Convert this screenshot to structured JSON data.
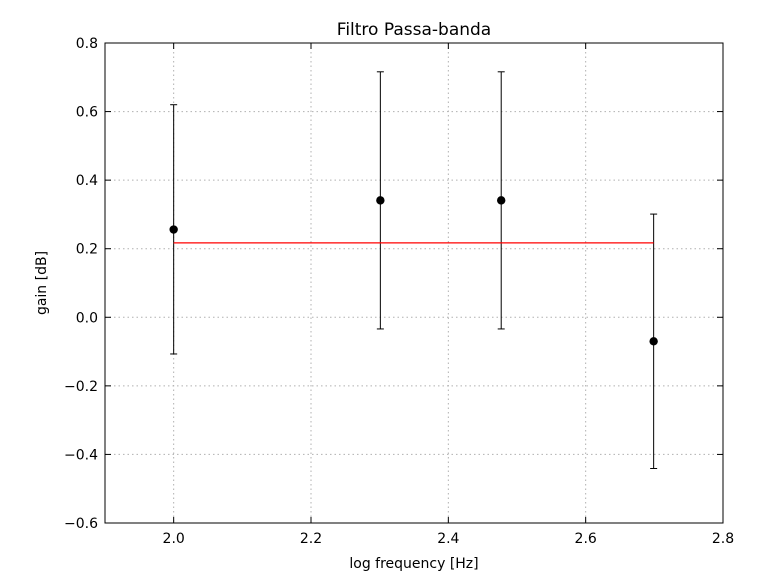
{
  "chart_data": {
    "type": "scatter",
    "title": "Filtro Passa-banda",
    "xlabel": "log frequency [Hz]",
    "ylabel": "gain [dB]",
    "xlim": [
      1.9,
      2.8
    ],
    "ylim": [
      -0.6,
      0.8
    ],
    "x_ticks": [
      2.0,
      2.2,
      2.4,
      2.6,
      2.8
    ],
    "x_tick_labels": [
      "2.0",
      "2.2",
      "2.4",
      "2.6",
      "2.8"
    ],
    "y_ticks": [
      -0.6,
      -0.4,
      -0.2,
      0.0,
      0.2,
      0.4,
      0.6,
      0.8
    ],
    "y_tick_labels": [
      "−0.6",
      "−0.4",
      "−0.2",
      "0.0",
      "0.2",
      "0.4",
      "0.6",
      "0.8"
    ],
    "grid": true,
    "series": [
      {
        "kind": "errorbar",
        "color": "#000000",
        "x": [
          2.0,
          2.301,
          2.477,
          2.699
        ],
        "y": [
          0.256,
          0.341,
          0.341,
          -0.07
        ],
        "yerr_low": [
          -0.107,
          -0.034,
          -0.034,
          -0.441
        ],
        "yerr_high": [
          0.62,
          0.716,
          0.716,
          0.301
        ]
      },
      {
        "kind": "line",
        "color": "#ff0000",
        "x": [
          2.0,
          2.699
        ],
        "y": [
          0.217,
          0.217
        ]
      }
    ]
  }
}
